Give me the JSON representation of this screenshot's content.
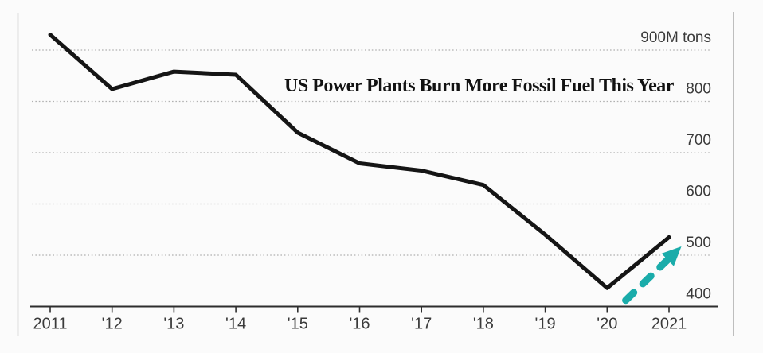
{
  "page": {
    "background": "#fbfbfb"
  },
  "chart_data": {
    "type": "line",
    "title": "US Power Plants Burn More Fossil Fuel This Year",
    "unit": "M tons",
    "grid": "horizontal-dotted",
    "legend": "none",
    "years": [
      2011,
      2012,
      2013,
      2014,
      2015,
      2016,
      2017,
      2018,
      2019,
      2020,
      2021
    ],
    "x_tick_labels": [
      "2011",
      "'12",
      "'13",
      "'14",
      "'15",
      "'16",
      "'17",
      "'18",
      "'19",
      "'20",
      "2021"
    ],
    "series": [
      {
        "name": "fossil-fuel-burned-by-us-power-plants",
        "color": "#151515",
        "values": [
          930,
          824,
          858,
          852,
          739,
          679,
          665,
          637,
          540,
          436,
          535
        ]
      }
    ],
    "ylim": [
      400,
      940
    ],
    "y_ticks": [
      {
        "value": 900,
        "label": "900M tons"
      },
      {
        "value": 800,
        "label": "800"
      },
      {
        "value": 700,
        "label": "700"
      },
      {
        "value": 600,
        "label": "600"
      },
      {
        "value": 500,
        "label": "500"
      },
      {
        "value": 400,
        "label": "400"
      }
    ],
    "y_gridlines": [
      900,
      800,
      700,
      600,
      500
    ],
    "annotations": [
      {
        "type": "arrow",
        "style": "dashed",
        "color": "#1aacaa",
        "from_year": 2020.3,
        "from_value": 412,
        "to_year": 2021.2,
        "to_value": 517
      }
    ],
    "colors": {
      "line": "#151515",
      "accent_arrow": "#1aacaa",
      "gridline": "#b1b1b1",
      "axis": "#2e2e2e",
      "label_text": "#3a3a3a",
      "spine": "#9d9d9d"
    }
  }
}
